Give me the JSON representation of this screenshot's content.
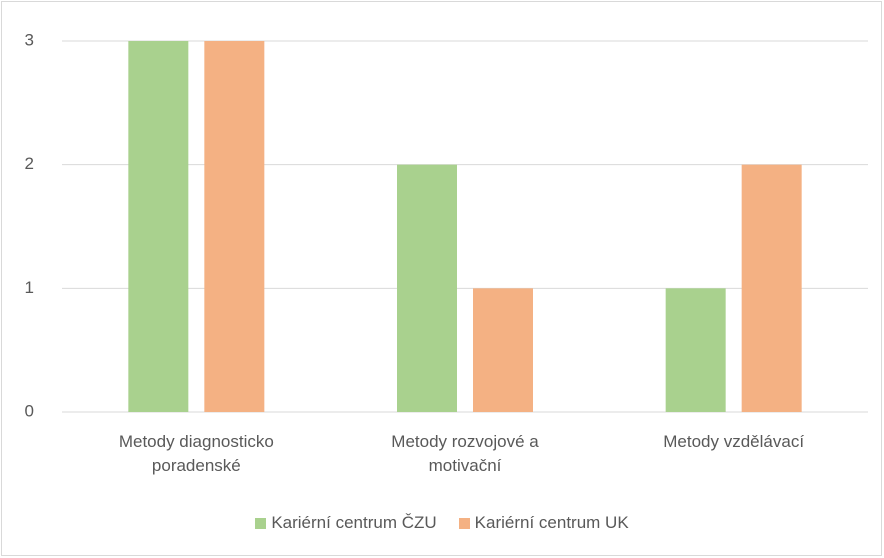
{
  "chart_data": {
    "type": "bar",
    "categories": [
      "Metody diagnosticko poradenské",
      "Metody rozvojové a motivační",
      "Metody vzdělávací"
    ],
    "series": [
      {
        "name": "Kariérní centrum ČZU",
        "color": "#a9d18e",
        "values": [
          3,
          2,
          1
        ]
      },
      {
        "name": "Kariérní centrum UK",
        "color": "#f4b183",
        "values": [
          3,
          1,
          2
        ]
      }
    ],
    "ylim": [
      0,
      3
    ],
    "yticks": [
      0,
      1,
      2,
      3
    ],
    "grid": true,
    "legend": "bottom"
  }
}
